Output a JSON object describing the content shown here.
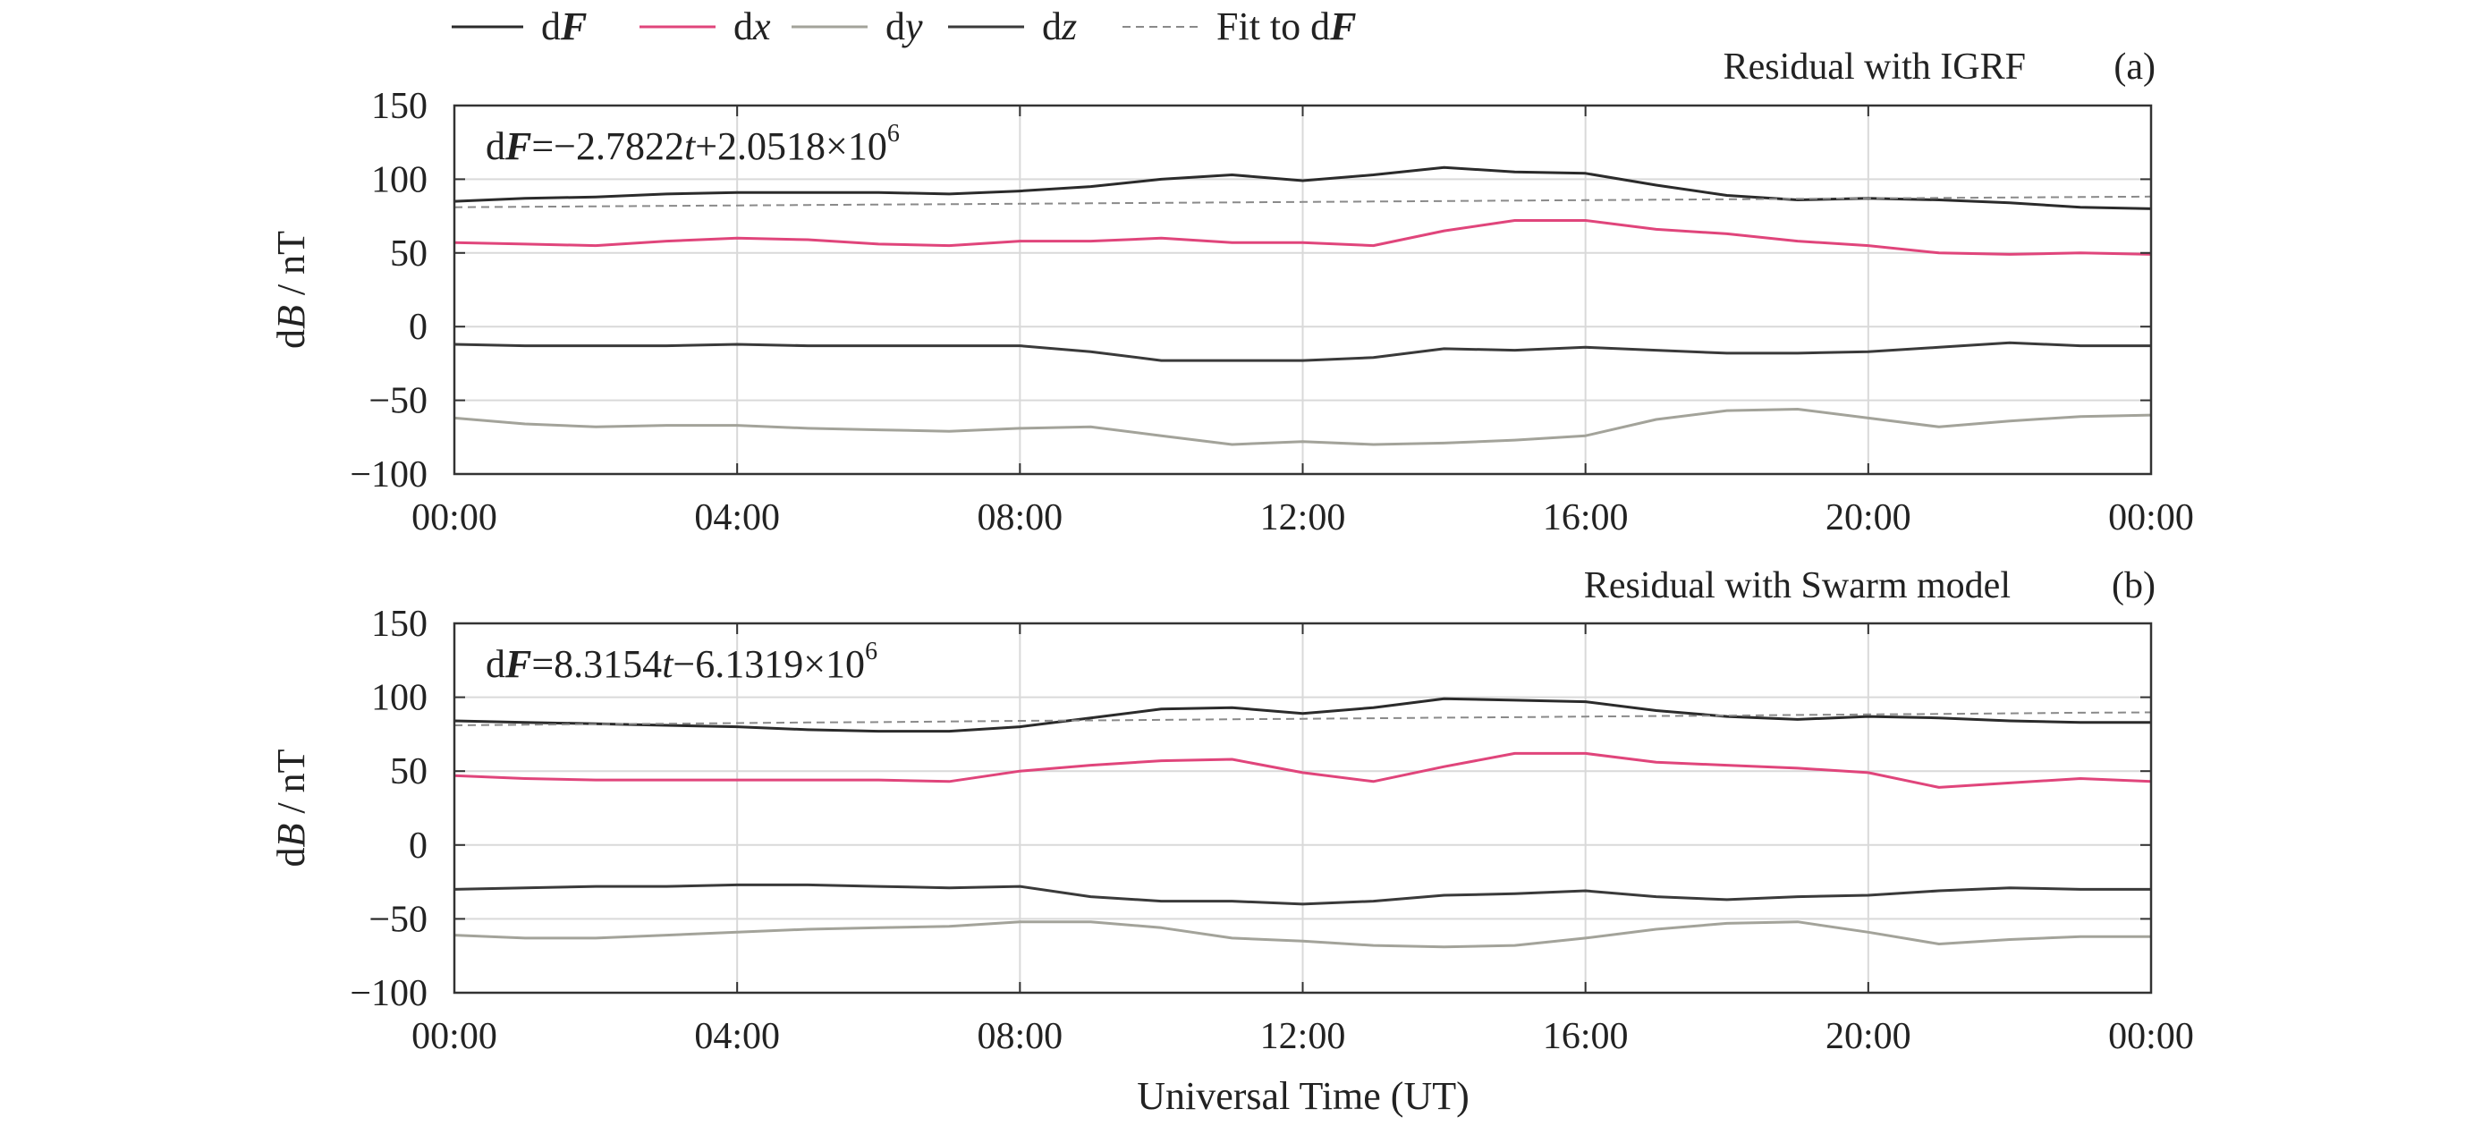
{
  "legend": [
    {
      "key": "dF",
      "label_prefix": "d",
      "label_var": "F",
      "var_style": "bold-italic",
      "color": "#2b2b2b",
      "dash": false
    },
    {
      "key": "dx",
      "label_prefix": "d",
      "label_var": "x",
      "var_style": "italic",
      "color": "#e0457b",
      "dash": false
    },
    {
      "key": "dy",
      "label_prefix": "d",
      "label_var": "y",
      "var_style": "italic",
      "color": "#a3a39a",
      "dash": false
    },
    {
      "key": "dz",
      "label_prefix": "d",
      "label_var": "z",
      "var_style": "italic",
      "color": "#3a3a3a",
      "dash": false
    },
    {
      "key": "fit",
      "label_prefix": "Fit to d",
      "label_var": "F",
      "var_style": "bold-italic",
      "color": "#8a8a8a",
      "dash": true
    }
  ],
  "xlabel": "Universal Time (UT)",
  "colors": {
    "dF": "#2b2b2b",
    "dx": "#e0457b",
    "dy": "#a3a39a",
    "dz": "#3a3a3a",
    "fit": "#8a8a8a",
    "grid": "#d9d9d9",
    "axis": "#333333"
  },
  "chart_data": [
    {
      "type": "line",
      "panel": "(a)",
      "title": "Residual with IGRF",
      "ylabel_prefix": "d",
      "ylabel_var": "B",
      "ylabel_suffix": " / nT",
      "fit_text": {
        "prefix": "d",
        "var": "F",
        "expr": "=−2.7822",
        "tvar": "t",
        "expr2": "+2.0518×10",
        "exp": "6"
      },
      "xlim": [
        0,
        24
      ],
      "ylim": [
        -100,
        150
      ],
      "xticks": [
        0,
        4,
        8,
        12,
        16,
        20,
        24
      ],
      "xtick_labels": [
        "00:00",
        "04:00",
        "08:00",
        "12:00",
        "16:00",
        "20:00",
        "00:00"
      ],
      "yticks": [
        150,
        100,
        50,
        0,
        -50,
        -100
      ],
      "ytick_labels": [
        "150",
        "100",
        "50",
        "0",
        "−50",
        "−100"
      ],
      "grid": true,
      "x": [
        0,
        1,
        2,
        3,
        4,
        5,
        6,
        7,
        8,
        9,
        10,
        11,
        12,
        13,
        14,
        15,
        16,
        17,
        18,
        19,
        20,
        21,
        22,
        23,
        24
      ],
      "series": [
        {
          "key": "dF",
          "values": [
            85,
            87,
            88,
            90,
            91,
            91,
            91,
            90,
            92,
            95,
            100,
            103,
            99,
            103,
            108,
            105,
            104,
            96,
            89,
            86,
            87,
            86,
            84,
            81,
            80
          ]
        },
        {
          "key": "dx",
          "values": [
            57,
            56,
            55,
            58,
            60,
            59,
            56,
            55,
            58,
            58,
            60,
            57,
            57,
            55,
            65,
            72,
            72,
            66,
            63,
            58,
            55,
            50,
            49,
            50,
            49
          ]
        },
        {
          "key": "dy",
          "values": [
            -62,
            -66,
            -68,
            -67,
            -67,
            -69,
            -70,
            -71,
            -69,
            -68,
            -74,
            -80,
            -78,
            -80,
            -79,
            -77,
            -74,
            -63,
            -57,
            -56,
            -62,
            -68,
            -64,
            -61,
            -60
          ]
        },
        {
          "key": "dz",
          "values": [
            -12,
            -13,
            -13,
            -13,
            -12,
            -13,
            -13,
            -13,
            -13,
            -17,
            -23,
            -23,
            -23,
            -21,
            -15,
            -16,
            -14,
            -16,
            -18,
            -18,
            -17,
            -14,
            -11,
            -13,
            -13
          ]
        },
        {
          "key": "fit",
          "dash": true,
          "values": [
            81,
            81.3,
            81.6,
            81.9,
            82.2,
            82.5,
            82.8,
            83.1,
            83.4,
            83.7,
            84,
            84.3,
            84.6,
            84.9,
            85.2,
            85.5,
            85.8,
            86.1,
            86.4,
            86.7,
            87,
            87.3,
            87.6,
            87.9,
            88.2
          ]
        }
      ]
    },
    {
      "type": "line",
      "panel": "(b)",
      "title": "Residual with Swarm model",
      "ylabel_prefix": "d",
      "ylabel_var": "B",
      "ylabel_suffix": " / nT",
      "fit_text": {
        "prefix": "d",
        "var": "F",
        "expr": "=8.3154",
        "tvar": "t",
        "expr2": "−6.1319×10",
        "exp": "6"
      },
      "xlim": [
        0,
        24
      ],
      "ylim": [
        -100,
        150
      ],
      "xticks": [
        0,
        4,
        8,
        12,
        16,
        20,
        24
      ],
      "xtick_labels": [
        "00:00",
        "04:00",
        "08:00",
        "12:00",
        "16:00",
        "20:00",
        "00:00"
      ],
      "yticks": [
        150,
        100,
        50,
        0,
        -50,
        -100
      ],
      "ytick_labels": [
        "150",
        "100",
        "50",
        "0",
        "−50",
        "−100"
      ],
      "grid": true,
      "x": [
        0,
        1,
        2,
        3,
        4,
        5,
        6,
        7,
        8,
        9,
        10,
        11,
        12,
        13,
        14,
        15,
        16,
        17,
        18,
        19,
        20,
        21,
        22,
        23,
        24
      ],
      "series": [
        {
          "key": "dF",
          "values": [
            84,
            83,
            82,
            81,
            80,
            78,
            77,
            77,
            80,
            86,
            92,
            93,
            89,
            93,
            99,
            98,
            97,
            91,
            87,
            85,
            87,
            86,
            84,
            83,
            83
          ]
        },
        {
          "key": "dx",
          "values": [
            47,
            45,
            44,
            44,
            44,
            44,
            44,
            43,
            50,
            54,
            57,
            58,
            49,
            43,
            53,
            62,
            62,
            56,
            54,
            52,
            49,
            39,
            42,
            45,
            43
          ]
        },
        {
          "key": "dy",
          "values": [
            -61,
            -63,
            -63,
            -61,
            -59,
            -57,
            -56,
            -55,
            -52,
            -52,
            -56,
            -63,
            -65,
            -68,
            -69,
            -68,
            -63,
            -57,
            -53,
            -52,
            -59,
            -67,
            -64,
            -62,
            -62
          ]
        },
        {
          "key": "dz",
          "values": [
            -30,
            -29,
            -28,
            -28,
            -27,
            -27,
            -28,
            -29,
            -28,
            -35,
            -38,
            -38,
            -40,
            -38,
            -34,
            -33,
            -31,
            -35,
            -37,
            -35,
            -34,
            -31,
            -29,
            -30,
            -30
          ]
        },
        {
          "key": "fit",
          "dash": true,
          "values": [
            81,
            81.4,
            81.8,
            82.1,
            82.5,
            82.9,
            83.2,
            83.6,
            84,
            84.3,
            84.7,
            85.1,
            85.4,
            85.8,
            86.2,
            86.5,
            86.9,
            87.3,
            87.6,
            88,
            88.4,
            88.7,
            89.1,
            89.5,
            89.8
          ]
        }
      ]
    }
  ]
}
